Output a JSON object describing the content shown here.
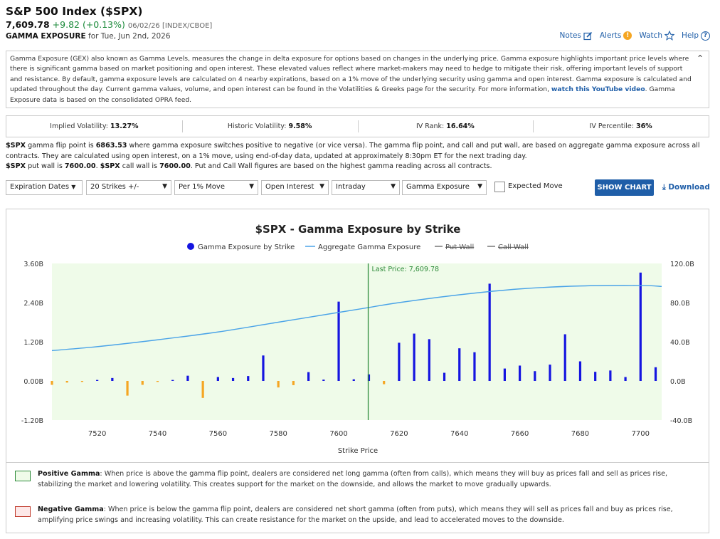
{
  "header": {
    "title": "S&P 500 Index ($SPX)",
    "price": "7,609.78",
    "change": "+9.82 (+0.13%)",
    "meta": "06/02/26 [INDEX/CBOE]",
    "sub_label": "GAMMA EXPOSURE",
    "sub_date": "for Tue, Jun 2nd, 2026"
  },
  "links": {
    "notes": "Notes",
    "alerts": "Alerts",
    "watch": "Watch",
    "help": "Help"
  },
  "description": {
    "text1": "Gamma Exposure (GEX) also known as Gamma Levels, measures the change in delta exposure for options based on changes in the underlying price. Gamma exposure highlights important price levels where there is significant gamma based on market positioning and open interest. These elevated values reflect where market-makers may need to hedge to mitigate their risk, offering important levels of support and resistance. By default, gamma exposure levels are calculated on 4 nearby expirations, based on a 1% move of the underlying security using gamma and open interest. Gamma exposure is calculated and updated throughout the day. Current gamma values, volume, and open interest can be found in the Volatilities & Greeks page for the security. For more information,",
    "link": "watch this YouTube video",
    "text2": ". Gamma Exposure data is based on the consolidated OPRA feed."
  },
  "stats": [
    {
      "label": "Implied Volatility:",
      "value": "13.27%"
    },
    {
      "label": "Historic Volatility:",
      "value": "9.58%"
    },
    {
      "label": "IV Rank:",
      "value": "16.64%"
    },
    {
      "label": "IV Percentile:",
      "value": "36%"
    }
  ],
  "info": {
    "sym": "$SPX",
    "t1": " gamma flip point is ",
    "flip": "6863.53",
    "t2": " where gamma exposure switches positive to negative (or vice versa). The gamma flip point, and call and put wall, are based on aggregate gamma exposure across all contracts. They are calculated using open interest, on a 1% move, using end-of-day data, updated at approximately 8:30pm ET for the next trading day.",
    "sym2": "$SPX",
    "t3": " put wall is ",
    "putwall": "7600.00",
    "t4": ". ",
    "sym3": "$SPX",
    "t5": " call wall is ",
    "callwall": "7600.00",
    "t6": ". Put and Call Wall figures are based on the highest gamma reading across all contracts."
  },
  "controls": {
    "expiration": "Expiration Dates",
    "strikes": "20 Strikes +/-",
    "move": "Per 1% Move",
    "oi": "Open Interest",
    "intraday": "Intraday",
    "gamma": "Gamma Exposure",
    "expected": "Expected Move",
    "show_chart": "SHOW CHART",
    "download": "Download"
  },
  "colors": {
    "bar_pos": "#1515e0",
    "bar_neg": "#f5a623",
    "aggregate": "#4aa3e8",
    "positive_zone": "#effbe9",
    "last_price_line": "#2e8b3a",
    "accent": "#1f5ea8"
  },
  "chart_data": {
    "type": "bar",
    "title": "$SPX - Gamma Exposure by Strike",
    "xlabel": "Strike Price",
    "legend": [
      "Gamma Exposure by Strike",
      "Aggregate Gamma Exposure",
      "Put Wall",
      "Call Wall"
    ],
    "last_price_label": "Last Price: 7,609.78",
    "last_price": 7609.78,
    "xlim": [
      7505,
      7707
    ],
    "x_ticks": [
      7520,
      7540,
      7560,
      7580,
      7600,
      7620,
      7640,
      7660,
      7680,
      7700
    ],
    "y_left_ticks": [
      "3.60B",
      "2.40B",
      "1.20B",
      "0.00B",
      "-1.20B"
    ],
    "y_left_range": [
      -1.2,
      3.6
    ],
    "y_right_ticks": [
      "120.0B",
      "80.0B",
      "40.0B",
      "0.0B",
      "-40.0B"
    ],
    "y_right_range": [
      -40,
      120
    ],
    "series": [
      {
        "name": "Gamma Exposure by Strike",
        "unit": "B",
        "points": [
          {
            "x": 7505,
            "y": -0.12
          },
          {
            "x": 7510,
            "y": -0.05
          },
          {
            "x": 7515,
            "y": -0.03
          },
          {
            "x": 7520,
            "y": 0.03
          },
          {
            "x": 7525,
            "y": 0.09
          },
          {
            "x": 7530,
            "y": -0.45
          },
          {
            "x": 7535,
            "y": -0.12
          },
          {
            "x": 7540,
            "y": -0.03
          },
          {
            "x": 7545,
            "y": 0.03
          },
          {
            "x": 7550,
            "y": 0.16
          },
          {
            "x": 7555,
            "y": -0.52
          },
          {
            "x": 7560,
            "y": 0.12
          },
          {
            "x": 7565,
            "y": 0.09
          },
          {
            "x": 7570,
            "y": 0.15
          },
          {
            "x": 7575,
            "y": 0.78
          },
          {
            "x": 7580,
            "y": -0.2
          },
          {
            "x": 7585,
            "y": -0.13
          },
          {
            "x": 7590,
            "y": 0.27
          },
          {
            "x": 7595,
            "y": 0.04
          },
          {
            "x": 7600,
            "y": 2.43
          },
          {
            "x": 7605,
            "y": 0.05
          },
          {
            "x": 7610,
            "y": 0.2
          },
          {
            "x": 7615,
            "y": -0.1
          },
          {
            "x": 7620,
            "y": 1.17
          },
          {
            "x": 7625,
            "y": 1.45
          },
          {
            "x": 7630,
            "y": 1.28
          },
          {
            "x": 7635,
            "y": 0.25
          },
          {
            "x": 7640,
            "y": 1.0
          },
          {
            "x": 7645,
            "y": 0.88
          },
          {
            "x": 7650,
            "y": 2.98
          },
          {
            "x": 7655,
            "y": 0.38
          },
          {
            "x": 7660,
            "y": 0.47
          },
          {
            "x": 7665,
            "y": 0.3
          },
          {
            "x": 7670,
            "y": 0.5
          },
          {
            "x": 7675,
            "y": 1.43
          },
          {
            "x": 7680,
            "y": 0.6
          },
          {
            "x": 7685,
            "y": 0.28
          },
          {
            "x": 7690,
            "y": 0.32
          },
          {
            "x": 7695,
            "y": 0.12
          },
          {
            "x": 7700,
            "y": 3.32
          },
          {
            "x": 7705,
            "y": 0.42
          }
        ]
      },
      {
        "name": "Aggregate Gamma Exposure",
        "unit": "B",
        "points": [
          {
            "x": 7505,
            "y": 31
          },
          {
            "x": 7520,
            "y": 35
          },
          {
            "x": 7540,
            "y": 42
          },
          {
            "x": 7560,
            "y": 50
          },
          {
            "x": 7580,
            "y": 60
          },
          {
            "x": 7600,
            "y": 70
          },
          {
            "x": 7610,
            "y": 75
          },
          {
            "x": 7620,
            "y": 80
          },
          {
            "x": 7640,
            "y": 88
          },
          {
            "x": 7660,
            "y": 94
          },
          {
            "x": 7680,
            "y": 97
          },
          {
            "x": 7700,
            "y": 97.5
          },
          {
            "x": 7707,
            "y": 96.5
          }
        ]
      }
    ]
  },
  "notes": {
    "pos_label": "Positive Gamma",
    "pos_text": ": When price is above the gamma flip point, dealers are considered net long gamma (often from calls), which means they will buy as prices fall and sell as prices rise, stabilizing the market and lowering volatility. This creates support for the market on the downside, and allows the market to move gradually upwards.",
    "neg_label": "Negative Gamma",
    "neg_text": ": When price is below the gamma flip point, dealers are considered net short gamma (often from puts), which means they will sell as prices fall and buy as prices rise, amplifying price swings and increasing volatility. This can create resistance for the market on the upside, and lead to accelerated moves to the downside."
  }
}
